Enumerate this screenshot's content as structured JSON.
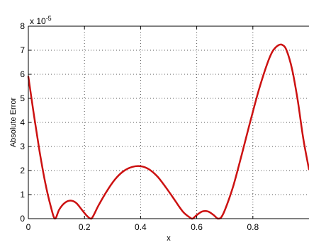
{
  "chart_data": {
    "type": "line",
    "title": "",
    "xlabel": "x",
    "ylabel": "Absolute Error",
    "y_exponent": {
      "base": "x 10",
      "power": "-5"
    },
    "xlim": [
      0,
      1
    ],
    "ylim": [
      0,
      8
    ],
    "grid": true,
    "x_ticks": [
      0,
      0.2,
      0.4,
      0.6,
      0.8
    ],
    "x_tick_labels": [
      "0",
      "0.2",
      "0.4",
      "0.6",
      "0.8"
    ],
    "y_ticks": [
      0,
      1,
      2,
      3,
      4,
      5,
      6,
      7,
      8
    ],
    "y_tick_labels": [
      "0",
      "1",
      "2",
      "3",
      "4",
      "5",
      "6",
      "7",
      "8"
    ],
    "series": [
      {
        "color": "#cc1111",
        "x": [
          0,
          0.02,
          0.04,
          0.06,
          0.08,
          0.095,
          0.11,
          0.13,
          0.15,
          0.17,
          0.19,
          0.21,
          0.225,
          0.25,
          0.28,
          0.31,
          0.34,
          0.37,
          0.4,
          0.43,
          0.46,
          0.49,
          0.52,
          0.55,
          0.575,
          0.585,
          0.6,
          0.62,
          0.64,
          0.66,
          0.675,
          0.685,
          0.7,
          0.73,
          0.76,
          0.79,
          0.82,
          0.85,
          0.87,
          0.89,
          0.905,
          0.92,
          0.94,
          0.96,
          0.98,
          1.0
        ],
        "y": [
          5.9,
          4.3,
          2.8,
          1.5,
          0.5,
          0.0,
          0.38,
          0.66,
          0.75,
          0.66,
          0.38,
          0.1,
          0.0,
          0.55,
          1.15,
          1.65,
          1.98,
          2.15,
          2.18,
          2.05,
          1.75,
          1.3,
          0.8,
          0.3,
          0.05,
          0.0,
          0.15,
          0.3,
          0.3,
          0.15,
          0.0,
          0.02,
          0.35,
          1.35,
          2.65,
          4.0,
          5.3,
          6.4,
          6.95,
          7.2,
          7.22,
          7.0,
          6.2,
          4.9,
          3.3,
          2.05
        ]
      }
    ]
  }
}
